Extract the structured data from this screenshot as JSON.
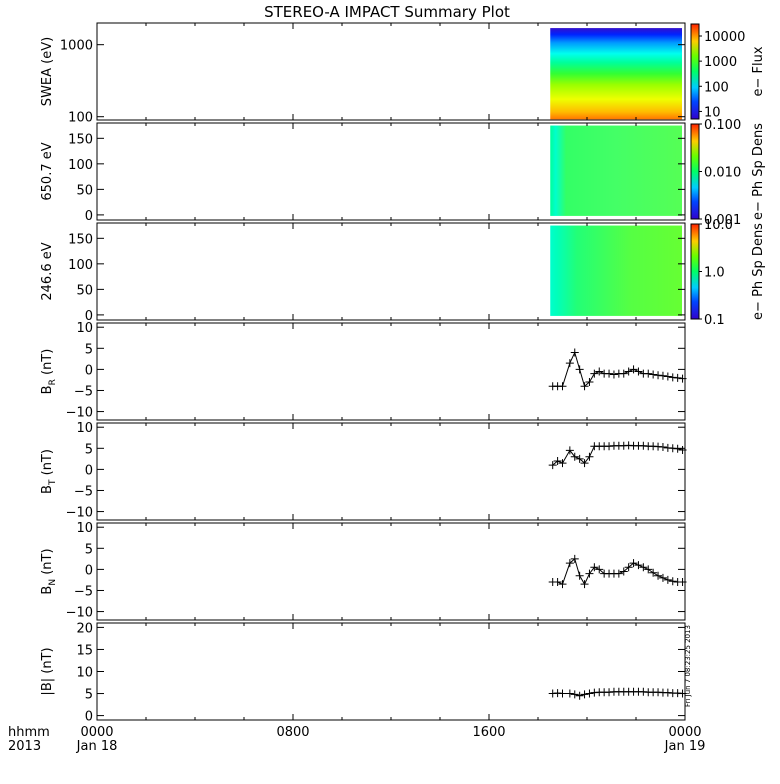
{
  "title": "STEREO-A IMPACT Summary Plot",
  "stamp": "Fri Jun  7 08:23:25 2013",
  "time_axis": {
    "row1": [
      "hhmm",
      "0000",
      "0800",
      "1600",
      "0000"
    ],
    "row2": [
      "2013",
      "Jan 18",
      "Jan 19"
    ],
    "range_hours": [
      0,
      24
    ]
  },
  "chart_data": [
    {
      "type": "heatmap",
      "ylabel": "SWEA (eV)",
      "yscale": "log",
      "ylim": [
        90,
        2000
      ],
      "yticks": [
        {
          "v": 1000,
          "label": "1000"
        },
        {
          "v": 100,
          "label": "100"
        }
      ],
      "data_start_hour": 18.5,
      "colorbar": {
        "label": "e− Flux",
        "scale": "log",
        "range": [
          5,
          30000
        ],
        "ticks": [
          {
            "v": 10000,
            "label": "10000"
          },
          {
            "v": 1000,
            "label": "1000"
          },
          {
            "v": 100,
            "label": "100"
          },
          {
            "v": 10,
            "label": "10"
          }
        ]
      }
    },
    {
      "type": "heatmap",
      "ylabel": "650.7 eV",
      "yscale": "linear",
      "ylim": [
        -10,
        180
      ],
      "yticks": [
        {
          "v": 150,
          "label": "150"
        },
        {
          "v": 100,
          "label": "100"
        },
        {
          "v": 50,
          "label": "50"
        },
        {
          "v": 0,
          "label": "0"
        }
      ],
      "data_start_hour": 18.5,
      "colorbar": {
        "label": "e− Ph Sp Dens",
        "scale": "log",
        "range": [
          0.001,
          0.1
        ],
        "ticks": [
          {
            "v": 0.1,
            "label": "0.100"
          },
          {
            "v": 0.01,
            "label": "0.010"
          },
          {
            "v": 0.001,
            "label": "0.001"
          }
        ]
      }
    },
    {
      "type": "heatmap",
      "ylabel": "246.6 eV",
      "yscale": "linear",
      "ylim": [
        -10,
        180
      ],
      "yticks": [
        {
          "v": 150,
          "label": "150"
        },
        {
          "v": 100,
          "label": "100"
        },
        {
          "v": 50,
          "label": "50"
        },
        {
          "v": 0,
          "label": "0"
        }
      ],
      "data_start_hour": 18.5,
      "colorbar": {
        "label": "e− Ph Sp Dens",
        "scale": "log",
        "range": [
          0.1,
          10
        ],
        "ticks": [
          {
            "v": 10,
            "label": "10.0"
          },
          {
            "v": 1,
            "label": "1.0"
          },
          {
            "v": 0.1,
            "label": "0.1"
          }
        ]
      }
    },
    {
      "type": "scatter",
      "ylabel": "B",
      "ylabel_sub": "R",
      "ylabel_unit": " (nT)",
      "ylim": [
        -12,
        11
      ],
      "yticks": [
        {
          "v": 10,
          "label": "10"
        },
        {
          "v": 5,
          "label": "5"
        },
        {
          "v": 0,
          "label": "0"
        },
        {
          "v": -5,
          "label": "−5"
        },
        {
          "v": -10,
          "label": "−10"
        }
      ],
      "x": [
        18.6,
        18.8,
        19.0,
        19.3,
        19.5,
        19.7,
        19.9,
        20.1,
        20.3,
        20.5,
        20.7,
        20.9,
        21.1,
        21.3,
        21.5,
        21.7,
        21.9,
        22.1,
        22.3,
        22.5,
        22.7,
        22.9,
        23.1,
        23.3,
        23.5,
        23.7,
        23.9
      ],
      "y": [
        -4,
        -4,
        -4,
        1.5,
        4,
        0,
        -4,
        -3,
        -1,
        -0.5,
        -1,
        -1,
        -1.2,
        -1,
        -1,
        -0.5,
        0,
        -0.5,
        -1,
        -1,
        -1.2,
        -1.4,
        -1.5,
        -1.7,
        -1.9,
        -2,
        -2.2
      ]
    },
    {
      "type": "scatter",
      "ylabel": "B",
      "ylabel_sub": "T",
      "ylabel_unit": " (nT)",
      "ylim": [
        -12,
        11
      ],
      "yticks": [
        {
          "v": 10,
          "label": "10"
        },
        {
          "v": 5,
          "label": "5"
        },
        {
          "v": 0,
          "label": "0"
        },
        {
          "v": -5,
          "label": "−5"
        },
        {
          "v": -10,
          "label": "−10"
        }
      ],
      "x": [
        18.6,
        18.8,
        19.0,
        19.3,
        19.5,
        19.7,
        19.9,
        20.1,
        20.3,
        20.5,
        20.7,
        20.9,
        21.1,
        21.3,
        21.5,
        21.7,
        21.9,
        22.1,
        22.3,
        22.5,
        22.7,
        22.9,
        23.1,
        23.3,
        23.5,
        23.7,
        23.9
      ],
      "y": [
        1,
        2,
        1.5,
        4.5,
        3,
        2.5,
        1.5,
        3,
        5.5,
        5.5,
        5.5,
        5.5,
        5.6,
        5.6,
        5.6,
        5.7,
        5.6,
        5.6,
        5.6,
        5.5,
        5.5,
        5.4,
        5.3,
        5.1,
        5.0,
        4.9,
        4.6
      ]
    },
    {
      "type": "scatter",
      "ylabel": "B",
      "ylabel_sub": "N",
      "ylabel_unit": " (nT)",
      "ylim": [
        -12,
        11
      ],
      "yticks": [
        {
          "v": 10,
          "label": "10"
        },
        {
          "v": 5,
          "label": "5"
        },
        {
          "v": 0,
          "label": "0"
        },
        {
          "v": -5,
          "label": "−5"
        },
        {
          "v": -10,
          "label": "−10"
        }
      ],
      "x": [
        18.6,
        18.8,
        19.0,
        19.3,
        19.5,
        19.7,
        19.9,
        20.1,
        20.3,
        20.5,
        20.7,
        20.9,
        21.1,
        21.3,
        21.5,
        21.7,
        21.9,
        22.1,
        22.3,
        22.5,
        22.7,
        22.9,
        23.1,
        23.3,
        23.5,
        23.7,
        23.9
      ],
      "y": [
        -3,
        -3,
        -3.5,
        1.5,
        2.5,
        -1.5,
        -3.5,
        -1,
        0.5,
        0,
        -1,
        -1,
        -1,
        -1,
        -0.5,
        0.5,
        1.5,
        1,
        0.5,
        0,
        -0.8,
        -1.5,
        -2,
        -2.5,
        -2.8,
        -3,
        -3
      ]
    },
    {
      "type": "scatter",
      "ylabel": "|B| (nT)",
      "ylim": [
        -1,
        21
      ],
      "yticks": [
        {
          "v": 20,
          "label": "20"
        },
        {
          "v": 15,
          "label": "15"
        },
        {
          "v": 10,
          "label": "10"
        },
        {
          "v": 5,
          "label": "5"
        },
        {
          "v": 0,
          "label": "0"
        }
      ],
      "x": [
        18.6,
        18.8,
        19.0,
        19.3,
        19.5,
        19.7,
        19.9,
        20.1,
        20.3,
        20.5,
        20.7,
        20.9,
        21.1,
        21.3,
        21.5,
        21.7,
        21.9,
        22.1,
        22.3,
        22.5,
        22.7,
        22.9,
        23.1,
        23.3,
        23.5,
        23.7,
        23.9
      ],
      "y": [
        5,
        5.1,
        5,
        5,
        4.8,
        4.5,
        4.8,
        5,
        5.2,
        5.3,
        5.3,
        5.3,
        5.4,
        5.4,
        5.4,
        5.4,
        5.4,
        5.4,
        5.4,
        5.3,
        5.3,
        5.3,
        5.2,
        5.2,
        5.1,
        5.1,
        5
      ]
    }
  ]
}
